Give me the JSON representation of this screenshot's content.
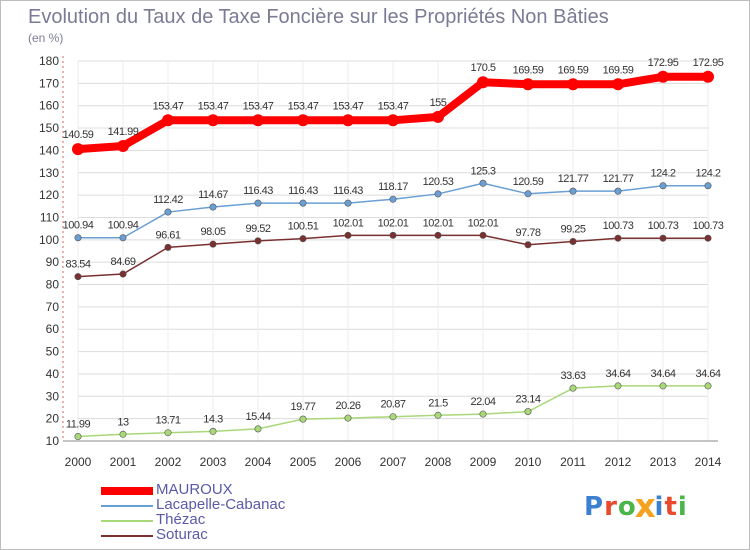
{
  "header": {
    "title": "Evolution du Taux de Taxe Foncière sur les Propriétés Non Bâties",
    "unit": "(en %)"
  },
  "logo": {
    "text": "Proxiti",
    "colors": [
      "#3d7fd1",
      "#e94a2d",
      "#4bb44a",
      "#f4a21f",
      "#3d7fd1",
      "#e94a2d",
      "#4bb44a"
    ]
  },
  "chart_data": {
    "type": "line",
    "title": "Evolution du Taux de Taxe Foncière sur les Propriétés Non Bâties",
    "ylabel": "(en %)",
    "xlabel": "",
    "x": [
      "2000",
      "2001",
      "2002",
      "2003",
      "2004",
      "2005",
      "2006",
      "2007",
      "2008",
      "2009",
      "2010",
      "2011",
      "2012",
      "2013",
      "2014"
    ],
    "ylim": [
      10,
      180
    ],
    "yticks": [
      10,
      20,
      30,
      40,
      50,
      60,
      70,
      80,
      90,
      100,
      110,
      120,
      130,
      140,
      150,
      160,
      170,
      180
    ],
    "grid": true,
    "legend": "bottom-left",
    "series": [
      {
        "name": "MAUROUX",
        "color": "#ff0000",
        "values": [
          140.59,
          141.99,
          153.47,
          153.47,
          153.47,
          153.47,
          153.47,
          153.47,
          155,
          170.5,
          169.59,
          169.59,
          169.59,
          172.95,
          172.95
        ],
        "labels": [
          "140.59",
          "141.99",
          "153.47",
          "153.47",
          "153.47",
          "153.47",
          "153.47",
          "153.47",
          "155",
          "170.5",
          "169.59",
          "169.59",
          "169.59",
          "172.95",
          "172.95"
        ]
      },
      {
        "name": "Lacapelle-Cabanac",
        "color": "#6a9fd4",
        "values": [
          100.94,
          100.94,
          112.42,
          114.67,
          116.43,
          116.43,
          116.43,
          118.17,
          120.53,
          125.3,
          120.59,
          121.77,
          121.77,
          124.2,
          124.2
        ],
        "labels": [
          "100.94",
          "100.94",
          "112.42",
          "114.67",
          "116.43",
          "116.43",
          "116.43",
          "118.17",
          "120.53",
          "125.3",
          "120.59",
          "121.77",
          "121.77",
          "124.2",
          "124.2"
        ]
      },
      {
        "name": "Thézac",
        "color": "#a8d878",
        "values": [
          11.99,
          13,
          13.71,
          14.3,
          15.44,
          19.77,
          20.26,
          20.87,
          21.5,
          22.04,
          23.14,
          33.63,
          34.64,
          34.64,
          34.64
        ],
        "labels": [
          "11.99",
          "13",
          "13.71",
          "14.3",
          "15.44",
          "19.77",
          "20.26",
          "20.87",
          "21.5",
          "22.04",
          "23.14",
          "33.63",
          "34.64",
          "34.64",
          "34.64"
        ]
      },
      {
        "name": "Soturac",
        "color": "#7a3030",
        "values": [
          83.54,
          84.69,
          96.61,
          98.05,
          99.52,
          100.51,
          102.01,
          102.01,
          102.01,
          102.01,
          97.78,
          99.25,
          100.73,
          100.73,
          100.73
        ],
        "labels": [
          "83.54",
          "84.69",
          "96.61",
          "98.05",
          "99.52",
          "100.51",
          "102.01",
          "102.01",
          "102.01",
          "102.01",
          "97.78",
          "99.25",
          "100.73",
          "100.73",
          "100.73"
        ]
      }
    ]
  }
}
